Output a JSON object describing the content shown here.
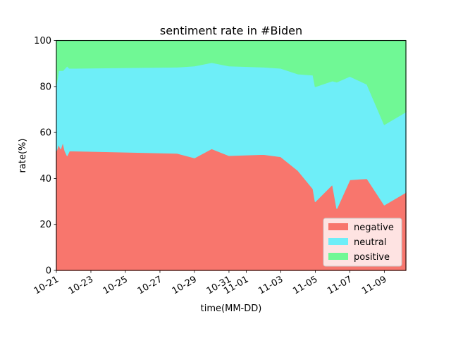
{
  "chart_data": {
    "type": "area",
    "title": "sentiment rate in #Biden",
    "xlabel": "time(MM-DD)",
    "ylabel": "rate(%)",
    "ylim": [
      0,
      100
    ],
    "yticks": [
      "0",
      "20",
      "40",
      "60",
      "80",
      "100"
    ],
    "xticks": [
      "10-21",
      "10-23",
      "10-25",
      "10-27",
      "10-29",
      "10-31",
      "11-01",
      "11-03",
      "11-05",
      "11-07",
      "11-09"
    ],
    "stacked": true,
    "legend_position": "lower right",
    "grid": false,
    "x": [
      "10-21 00:00",
      "10-21 03:00",
      "10-21 06:00",
      "10-21 09:00",
      "10-21 12:00",
      "10-21 15:00",
      "10-21 18:00",
      "10-21 21:00",
      "10-22 00:00",
      "10-28 00:00",
      "10-29 00:00",
      "10-30 00:00",
      "10-31 00:00",
      "11-02 00:00",
      "11-03 00:00",
      "11-04 00:00",
      "11-04 21:00",
      "11-05 00:00",
      "11-06 00:00",
      "11-06 06:00",
      "11-07 00:00",
      "11-08 00:00",
      "11-09 00:00",
      "11-10 06:00"
    ],
    "series": [
      {
        "name": "negative",
        "color": "#f8766d",
        "values": [
          52,
          55,
          53,
          56,
          52,
          50,
          52,
          52,
          52,
          51,
          49,
          53,
          50,
          50.5,
          49.5,
          43.5,
          35.5,
          30,
          37.5,
          27,
          39.5,
          40,
          28.5,
          34
        ]
      },
      {
        "name": "neutral",
        "color": "#6eeef8",
        "values": [
          29,
          32,
          34,
          31,
          36,
          39,
          36,
          36,
          36,
          37.5,
          40,
          37.5,
          39,
          38,
          38.5,
          42,
          49.5,
          50,
          45,
          55,
          45,
          41,
          35,
          35
        ]
      },
      {
        "name": "positive",
        "color": "#70f895",
        "values": [
          19,
          13,
          13,
          13,
          12,
          11,
          12,
          12,
          12,
          11.5,
          11,
          9.5,
          11,
          11.5,
          12,
          14.5,
          15,
          20,
          17.5,
          18,
          15.5,
          19,
          36.5,
          31
        ]
      }
    ]
  }
}
